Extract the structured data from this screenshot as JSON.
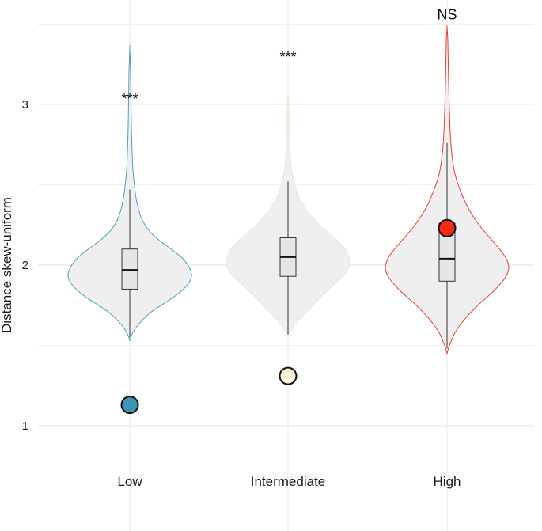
{
  "chart_data": {
    "type": "violin",
    "title": "",
    "xlabel": "",
    "ylabel": "Distance skew-uniform",
    "ylim": [
      0.5,
      3.5
    ],
    "yticks": [
      1,
      2,
      3
    ],
    "ytick_labels": [
      "1",
      "2",
      "3"
    ],
    "grid": true,
    "categories": [
      "Low",
      "Intermediate",
      "High"
    ],
    "groups": [
      {
        "category": "Low",
        "color": "#4aa3c0",
        "marker_color": "#3b93b5",
        "significance": "***",
        "observed": 1.13,
        "box": {
          "whisker_low": 1.55,
          "q1": 1.85,
          "median": 1.97,
          "q3": 2.1,
          "whisker_high": 2.47
        },
        "violin_min": 1.53,
        "violin_max": 3.35,
        "density": [
          [
            1.53,
            0.0
          ],
          [
            1.58,
            0.05
          ],
          [
            1.63,
            0.14
          ],
          [
            1.7,
            0.32
          ],
          [
            1.76,
            0.55
          ],
          [
            1.82,
            0.78
          ],
          [
            1.88,
            0.94
          ],
          [
            1.93,
            1.0
          ],
          [
            1.98,
            0.97
          ],
          [
            2.04,
            0.86
          ],
          [
            2.1,
            0.67
          ],
          [
            2.16,
            0.46
          ],
          [
            2.22,
            0.3
          ],
          [
            2.3,
            0.18
          ],
          [
            2.4,
            0.11
          ],
          [
            2.5,
            0.075
          ],
          [
            2.6,
            0.05
          ],
          [
            2.8,
            0.03
          ],
          [
            3.0,
            0.02
          ],
          [
            3.2,
            0.013
          ],
          [
            3.35,
            0.0
          ]
        ]
      },
      {
        "category": "Intermediate",
        "color": "#f0e6c8",
        "marker_color": "#fdf3d6",
        "significance": "***",
        "observed": 1.31,
        "box": {
          "whisker_low": 1.57,
          "q1": 1.93,
          "median": 2.05,
          "q3": 2.17,
          "whisker_high": 2.52
        },
        "violin_min": 1.55,
        "violin_max": 3.07,
        "density": [
          [
            1.55,
            0.0
          ],
          [
            1.6,
            0.06
          ],
          [
            1.66,
            0.18
          ],
          [
            1.74,
            0.38
          ],
          [
            1.82,
            0.58
          ],
          [
            1.9,
            0.8
          ],
          [
            1.96,
            0.95
          ],
          [
            2.02,
            1.0
          ],
          [
            2.07,
            0.97
          ],
          [
            2.13,
            0.86
          ],
          [
            2.2,
            0.66
          ],
          [
            2.27,
            0.46
          ],
          [
            2.35,
            0.29
          ],
          [
            2.45,
            0.15
          ],
          [
            2.55,
            0.08
          ],
          [
            2.65,
            0.04
          ],
          [
            2.8,
            0.025
          ],
          [
            2.95,
            0.015
          ],
          [
            3.07,
            0.0
          ]
        ]
      },
      {
        "category": "High",
        "color": "#e8412f",
        "marker_color": "#f62a15",
        "significance": "NS",
        "observed": 2.23,
        "box": {
          "whisker_low": 1.48,
          "q1": 1.9,
          "median": 2.04,
          "q3": 2.26,
          "whisker_high": 2.76
        },
        "violin_min": 1.45,
        "violin_max": 3.48,
        "density": [
          [
            1.45,
            0.0
          ],
          [
            1.5,
            0.04
          ],
          [
            1.58,
            0.13
          ],
          [
            1.66,
            0.28
          ],
          [
            1.75,
            0.5
          ],
          [
            1.84,
            0.76
          ],
          [
            1.92,
            0.94
          ],
          [
            1.98,
            1.0
          ],
          [
            2.04,
            0.96
          ],
          [
            2.1,
            0.85
          ],
          [
            2.18,
            0.67
          ],
          [
            2.26,
            0.5
          ],
          [
            2.35,
            0.35
          ],
          [
            2.45,
            0.23
          ],
          [
            2.55,
            0.14
          ],
          [
            2.65,
            0.09
          ],
          [
            2.8,
            0.055
          ],
          [
            3.0,
            0.035
          ],
          [
            3.2,
            0.022
          ],
          [
            3.4,
            0.012
          ],
          [
            3.48,
            0.0
          ]
        ]
      }
    ]
  }
}
